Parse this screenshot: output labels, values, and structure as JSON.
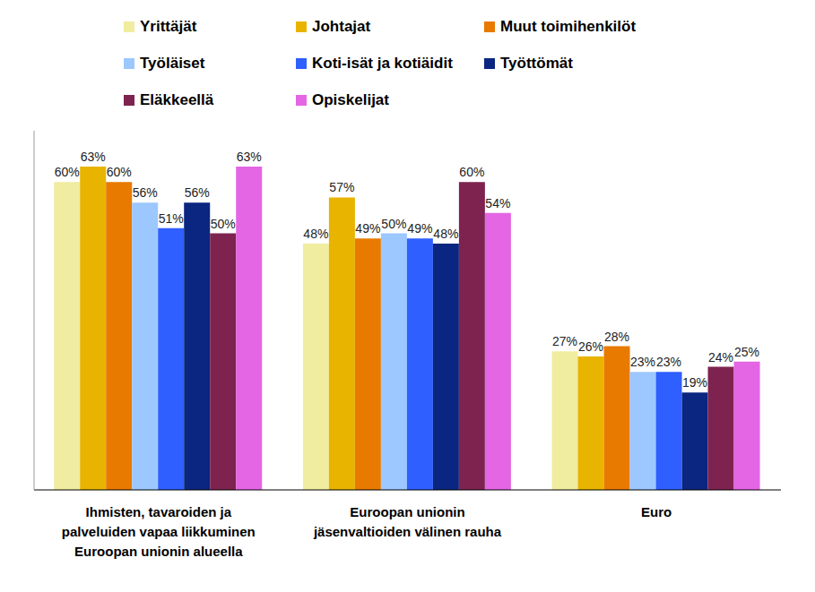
{
  "chart_data": {
    "type": "bar",
    "categories": [
      "Ihmisten, tavaroiden ja palveluiden vapaa liikkuminen Euroopan unionin alueella",
      "Euroopan unionin jäsenvaltioiden välinen rauha",
      "Euro"
    ],
    "ylim": [
      0,
      70
    ],
    "tick_labels": "x",
    "data_labels": true,
    "legend": "top",
    "series": [
      {
        "name": "Yrittäjät",
        "color": "#f0eca0",
        "values": [
          60,
          48,
          27
        ],
        "value_labels": [
          "60%",
          "48%",
          "27%"
        ]
      },
      {
        "name": "Johtajat",
        "color": "#e8b400",
        "values": [
          63,
          57,
          26
        ],
        "value_labels": [
          "63%",
          "57%",
          "26%"
        ]
      },
      {
        "name": "Muut toimihenkilöt",
        "color": "#e87a00",
        "values": [
          60,
          49,
          28
        ],
        "value_labels": [
          "60%",
          "49%",
          "28%"
        ]
      },
      {
        "name": "Työläiset",
        "color": "#9cc8ff",
        "values": [
          56,
          50,
          23
        ],
        "value_labels": [
          "56%",
          "50%",
          "23%"
        ]
      },
      {
        "name": "Koti-isät ja kotiäidit",
        "color": "#2f5fff",
        "values": [
          51,
          49,
          23
        ],
        "value_labels": [
          "51%",
          "49%",
          "23%"
        ]
      },
      {
        "name": "Työttömät",
        "color": "#0a2680",
        "values": [
          56,
          48,
          19
        ],
        "value_labels": [
          "56%",
          "48%",
          "19%"
        ]
      },
      {
        "name": "Eläkkeellä",
        "color": "#7e2350",
        "values": [
          50,
          60,
          24
        ],
        "value_labels": [
          "50%",
          "60%",
          "24%"
        ]
      },
      {
        "name": "Opiskelijat",
        "color": "#e466e4",
        "values": [
          63,
          54,
          25
        ],
        "value_labels": [
          "63%",
          "54%",
          "25%"
        ]
      }
    ]
  }
}
